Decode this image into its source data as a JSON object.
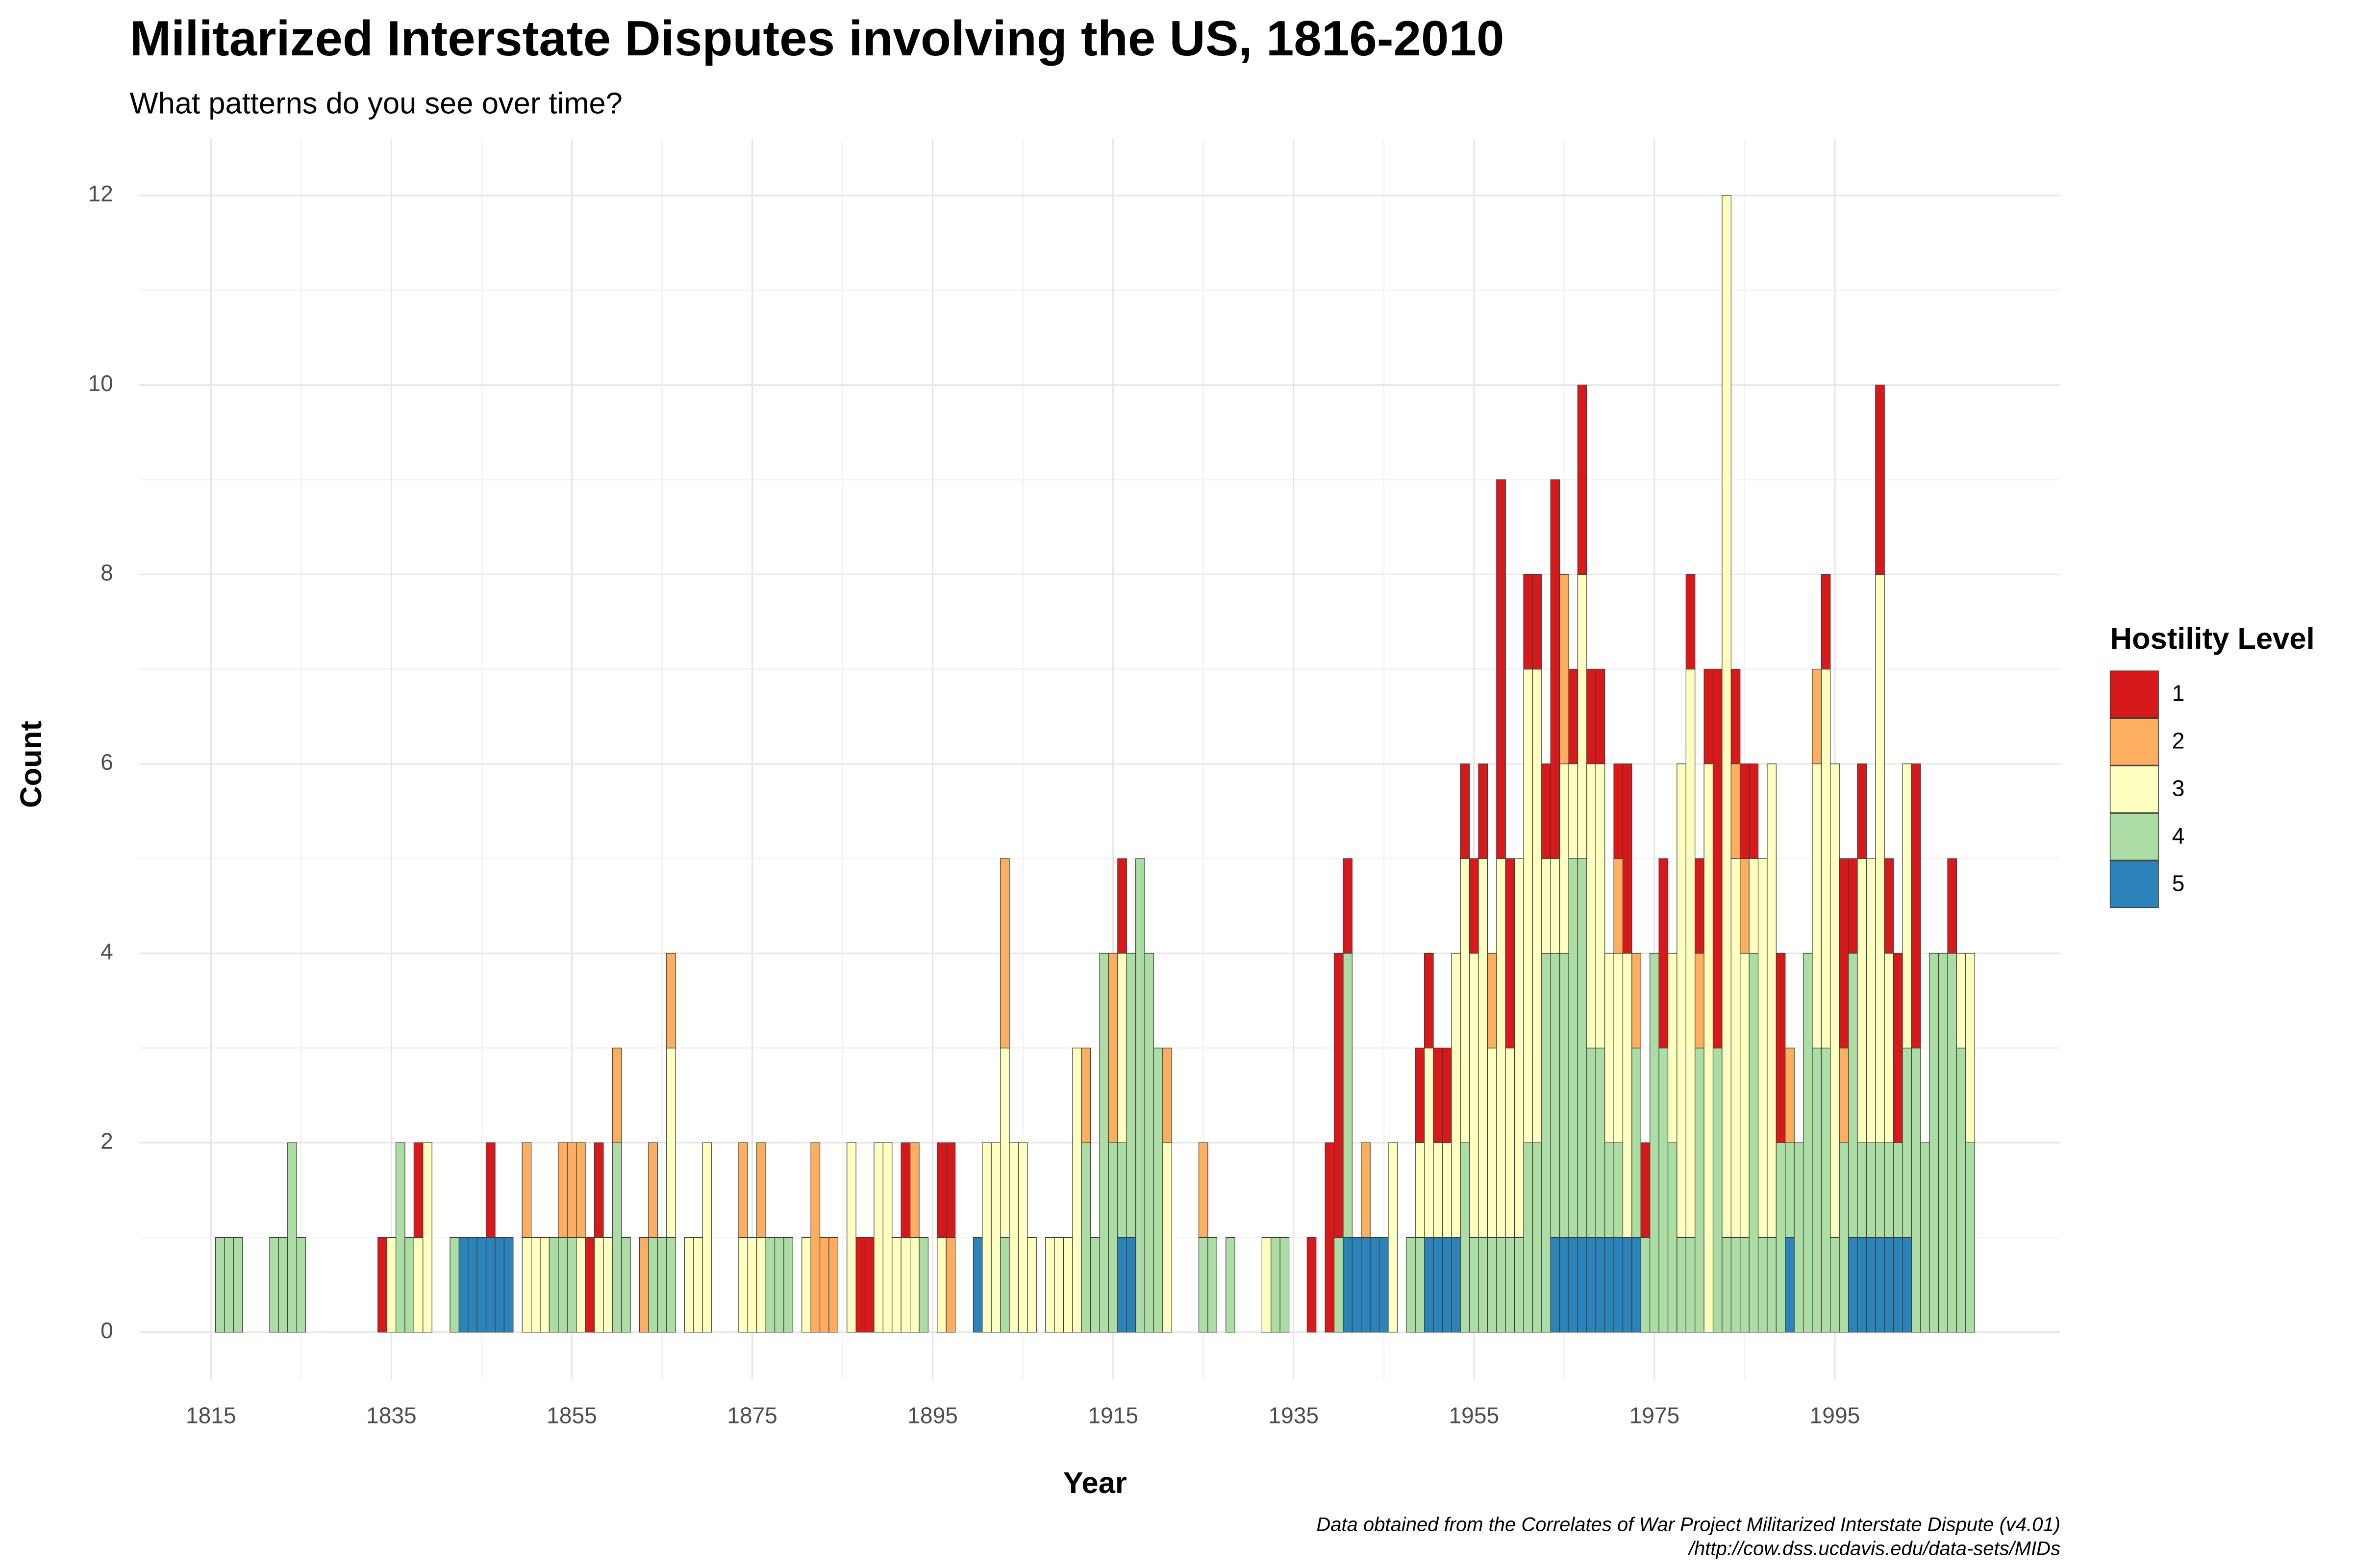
{
  "chart_data": {
    "type": "bar",
    "stacked": true,
    "title": "Militarized Interstate Disputes involving the US, 1816-2010",
    "subtitle": "What patterns do you see over time?",
    "x_label": "Year",
    "y_label": "Count",
    "legend_title": "Hostility Level",
    "legend": "right",
    "caption": [
      "Data obtained from the Correlates of War Project Militarized Interstate Dispute (v4.01)",
      "/http://cow.dss.ucdavis.edu/data-sets/MIDs"
    ],
    "grid": true,
    "xlim": [
      1807,
      2020
    ],
    "xticks": [
      1815,
      1835,
      1855,
      1875,
      1895,
      1915,
      1935,
      1955,
      1975,
      1995
    ],
    "ylim": [
      -0.5,
      12.6
    ],
    "yticks": [
      0,
      2,
      4,
      6,
      8,
      10,
      12
    ],
    "x": [
      1816,
      1817,
      1818,
      1819,
      1820,
      1821,
      1822,
      1823,
      1824,
      1825,
      1826,
      1827,
      1828,
      1829,
      1830,
      1831,
      1832,
      1833,
      1834,
      1835,
      1836,
      1837,
      1838,
      1839,
      1840,
      1841,
      1842,
      1843,
      1844,
      1845,
      1846,
      1847,
      1848,
      1849,
      1850,
      1851,
      1852,
      1853,
      1854,
      1855,
      1856,
      1857,
      1858,
      1859,
      1860,
      1861,
      1862,
      1863,
      1864,
      1865,
      1866,
      1867,
      1868,
      1869,
      1870,
      1871,
      1872,
      1873,
      1874,
      1875,
      1876,
      1877,
      1878,
      1879,
      1880,
      1881,
      1882,
      1883,
      1884,
      1885,
      1886,
      1887,
      1888,
      1889,
      1890,
      1891,
      1892,
      1893,
      1894,
      1895,
      1896,
      1897,
      1898,
      1899,
      1900,
      1901,
      1902,
      1903,
      1904,
      1905,
      1906,
      1907,
      1908,
      1909,
      1910,
      1911,
      1912,
      1913,
      1914,
      1915,
      1916,
      1917,
      1918,
      1919,
      1920,
      1921,
      1922,
      1923,
      1924,
      1925,
      1926,
      1927,
      1928,
      1929,
      1930,
      1931,
      1932,
      1933,
      1934,
      1935,
      1936,
      1937,
      1938,
      1939,
      1940,
      1941,
      1942,
      1943,
      1944,
      1945,
      1946,
      1947,
      1948,
      1949,
      1950,
      1951,
      1952,
      1953,
      1954,
      1955,
      1956,
      1957,
      1958,
      1959,
      1960,
      1961,
      1962,
      1963,
      1964,
      1965,
      1966,
      1967,
      1968,
      1969,
      1970,
      1971,
      1972,
      1973,
      1974,
      1975,
      1976,
      1977,
      1978,
      1979,
      1980,
      1981,
      1982,
      1983,
      1984,
      1985,
      1986,
      1987,
      1988,
      1989,
      1990,
      1991,
      1992,
      1993,
      1994,
      1995,
      1996,
      1997,
      1998,
      1999,
      2000,
      2001,
      2002,
      2003,
      2004,
      2005,
      2006,
      2007,
      2008,
      2009,
      2010
    ],
    "series": [
      {
        "name": "1",
        "color": "#d7191c",
        "values": [
          0,
          0,
          0,
          0,
          0,
          0,
          0,
          0,
          0,
          0,
          0,
          0,
          0,
          0,
          0,
          0,
          0,
          0,
          1,
          0,
          0,
          0,
          1,
          0,
          0,
          0,
          0,
          0,
          0,
          0,
          1,
          0,
          0,
          0,
          0,
          0,
          0,
          0,
          0,
          0,
          0,
          1,
          1,
          0,
          0,
          0,
          0,
          0,
          0,
          0,
          0,
          0,
          0,
          0,
          0,
          0,
          0,
          0,
          0,
          0,
          0,
          0,
          0,
          0,
          0,
          0,
          0,
          0,
          0,
          0,
          0,
          1,
          1,
          0,
          0,
          0,
          1,
          0,
          0,
          0,
          1,
          1,
          0,
          0,
          0,
          0,
          0,
          0,
          0,
          0,
          0,
          0,
          0,
          0,
          0,
          0,
          0,
          0,
          0,
          0,
          1,
          0,
          0,
          0,
          0,
          0,
          0,
          0,
          0,
          0,
          0,
          0,
          0,
          0,
          0,
          0,
          0,
          0,
          0,
          0,
          0,
          1,
          0,
          2,
          3,
          1,
          0,
          0,
          0,
          0,
          0,
          0,
          0,
          1,
          1,
          1,
          1,
          0,
          1,
          1,
          1,
          0,
          4,
          2,
          0,
          1,
          1,
          1,
          4,
          0,
          1,
          2,
          1,
          1,
          0,
          1,
          2,
          0,
          1,
          0,
          2,
          0,
          0,
          1,
          1,
          1,
          4,
          0,
          1,
          1,
          1,
          0,
          0,
          2,
          0,
          0,
          0,
          0,
          1,
          0,
          2,
          1,
          1,
          0,
          2,
          1,
          2,
          0,
          3,
          0,
          0,
          0,
          1,
          0,
          0
        ]
      },
      {
        "name": "2",
        "color": "#fdae61",
        "values": [
          0,
          0,
          0,
          0,
          0,
          0,
          0,
          0,
          0,
          0,
          0,
          0,
          0,
          0,
          0,
          0,
          0,
          0,
          0,
          0,
          0,
          0,
          0,
          0,
          0,
          0,
          0,
          0,
          0,
          0,
          0,
          0,
          0,
          0,
          1,
          0,
          0,
          0,
          1,
          1,
          1,
          0,
          0,
          0,
          1,
          0,
          0,
          1,
          1,
          0,
          1,
          0,
          0,
          0,
          0,
          0,
          0,
          0,
          1,
          0,
          1,
          0,
          0,
          0,
          0,
          0,
          2,
          1,
          1,
          0,
          0,
          0,
          0,
          0,
          0,
          0,
          0,
          1,
          0,
          0,
          0,
          1,
          0,
          0,
          0,
          0,
          0,
          2,
          0,
          0,
          0,
          0,
          0,
          0,
          0,
          0,
          1,
          0,
          0,
          2,
          0,
          0,
          0,
          0,
          0,
          1,
          0,
          0,
          0,
          1,
          0,
          0,
          0,
          0,
          0,
          0,
          0,
          0,
          0,
          0,
          0,
          0,
          0,
          0,
          0,
          0,
          0,
          1,
          0,
          0,
          0,
          0,
          0,
          0,
          0,
          0,
          0,
          0,
          0,
          0,
          0,
          1,
          0,
          0,
          0,
          0,
          0,
          0,
          0,
          2,
          0,
          0,
          0,
          0,
          0,
          1,
          0,
          1,
          0,
          0,
          0,
          0,
          0,
          0,
          1,
          0,
          0,
          0,
          1,
          1,
          0,
          0,
          0,
          0,
          1,
          0,
          0,
          1,
          0,
          0,
          1,
          0,
          0,
          0,
          0,
          0,
          0,
          0,
          0,
          0,
          0,
          0,
          0,
          0,
          0
        ]
      },
      {
        "name": "3",
        "color": "#ffffbf",
        "values": [
          0,
          0,
          0,
          0,
          0,
          0,
          0,
          0,
          0,
          0,
          0,
          0,
          0,
          0,
          0,
          0,
          0,
          0,
          0,
          1,
          0,
          0,
          1,
          2,
          0,
          0,
          0,
          0,
          0,
          0,
          0,
          0,
          0,
          0,
          1,
          1,
          1,
          0,
          0,
          0,
          1,
          0,
          1,
          1,
          0,
          0,
          0,
          0,
          0,
          0,
          2,
          0,
          1,
          1,
          2,
          0,
          0,
          0,
          1,
          1,
          1,
          0,
          0,
          0,
          0,
          1,
          0,
          0,
          0,
          0,
          2,
          0,
          0,
          2,
          2,
          1,
          1,
          1,
          0,
          0,
          1,
          0,
          0,
          0,
          0,
          2,
          2,
          2,
          2,
          2,
          1,
          0,
          1,
          1,
          1,
          3,
          0,
          0,
          0,
          0,
          2,
          0,
          0,
          0,
          0,
          2,
          0,
          0,
          0,
          0,
          0,
          0,
          0,
          0,
          0,
          0,
          1,
          0,
          0,
          0,
          0,
          0,
          0,
          0,
          0,
          0,
          0,
          0,
          0,
          0,
          2,
          0,
          0,
          1,
          2,
          1,
          1,
          3,
          3,
          3,
          4,
          2,
          4,
          2,
          4,
          5,
          5,
          1,
          1,
          2,
          1,
          3,
          3,
          3,
          2,
          2,
          3,
          0,
          0,
          0,
          0,
          2,
          5,
          6,
          0,
          6,
          0,
          11,
          4,
          3,
          1,
          4,
          5,
          0,
          0,
          0,
          0,
          3,
          4,
          5,
          0,
          0,
          3,
          3,
          6,
          2,
          0,
          3,
          0,
          0,
          0,
          0,
          0,
          1,
          2
        ]
      },
      {
        "name": "4",
        "color": "#abdda4",
        "values": [
          1,
          1,
          1,
          0,
          0,
          0,
          1,
          1,
          2,
          1,
          0,
          0,
          0,
          0,
          0,
          0,
          0,
          0,
          0,
          0,
          2,
          1,
          0,
          0,
          0,
          0,
          1,
          0,
          0,
          0,
          0,
          0,
          0,
          0,
          0,
          0,
          0,
          1,
          1,
          1,
          0,
          0,
          0,
          0,
          2,
          1,
          0,
          0,
          1,
          1,
          1,
          0,
          0,
          0,
          0,
          0,
          0,
          0,
          0,
          0,
          0,
          1,
          1,
          1,
          0,
          0,
          0,
          0,
          0,
          0,
          0,
          0,
          0,
          0,
          0,
          0,
          0,
          0,
          1,
          0,
          0,
          0,
          0,
          0,
          0,
          0,
          0,
          1,
          0,
          0,
          0,
          0,
          0,
          0,
          0,
          0,
          2,
          1,
          4,
          2,
          1,
          3,
          5,
          4,
          3,
          0,
          0,
          0,
          0,
          1,
          1,
          0,
          1,
          0,
          0,
          0,
          0,
          1,
          1,
          0,
          0,
          0,
          0,
          0,
          1,
          3,
          0,
          0,
          0,
          0,
          0,
          0,
          1,
          1,
          0,
          0,
          0,
          0,
          2,
          1,
          1,
          1,
          1,
          1,
          1,
          2,
          2,
          4,
          3,
          3,
          4,
          4,
          2,
          2,
          1,
          1,
          0,
          2,
          1,
          4,
          3,
          2,
          1,
          1,
          3,
          0,
          3,
          1,
          1,
          1,
          4,
          1,
          1,
          2,
          1,
          2,
          4,
          3,
          3,
          1,
          2,
          3,
          1,
          1,
          1,
          1,
          1,
          2,
          3,
          2,
          4,
          4,
          4,
          3,
          2
        ]
      },
      {
        "name": "5",
        "color": "#2b83ba",
        "values": [
          0,
          0,
          0,
          0,
          0,
          0,
          0,
          0,
          0,
          0,
          0,
          0,
          0,
          0,
          0,
          0,
          0,
          0,
          0,
          0,
          0,
          0,
          0,
          0,
          0,
          0,
          0,
          1,
          1,
          1,
          1,
          1,
          1,
          0,
          0,
          0,
          0,
          0,
          0,
          0,
          0,
          0,
          0,
          0,
          0,
          0,
          0,
          0,
          0,
          0,
          0,
          0,
          0,
          0,
          0,
          0,
          0,
          0,
          0,
          0,
          0,
          0,
          0,
          0,
          0,
          0,
          0,
          0,
          0,
          0,
          0,
          0,
          0,
          0,
          0,
          0,
          0,
          0,
          0,
          0,
          0,
          0,
          0,
          0,
          1,
          0,
          0,
          0,
          0,
          0,
          0,
          0,
          0,
          0,
          0,
          0,
          0,
          0,
          0,
          0,
          1,
          1,
          0,
          0,
          0,
          0,
          0,
          0,
          0,
          0,
          0,
          0,
          0,
          0,
          0,
          0,
          0,
          0,
          0,
          0,
          0,
          0,
          0,
          0,
          0,
          1,
          1,
          1,
          1,
          1,
          0,
          0,
          0,
          0,
          1,
          1,
          1,
          1,
          0,
          0,
          0,
          0,
          0,
          0,
          0,
          0,
          0,
          0,
          1,
          1,
          1,
          1,
          1,
          1,
          1,
          1,
          1,
          1,
          0,
          0,
          0,
          0,
          0,
          0,
          0,
          0,
          0,
          0,
          0,
          0,
          0,
          0,
          0,
          0,
          1,
          0,
          0,
          0,
          0,
          0,
          0,
          1,
          1,
          1,
          1,
          1,
          1,
          1,
          0,
          0,
          0,
          0,
          0,
          0,
          0
        ]
      }
    ]
  }
}
